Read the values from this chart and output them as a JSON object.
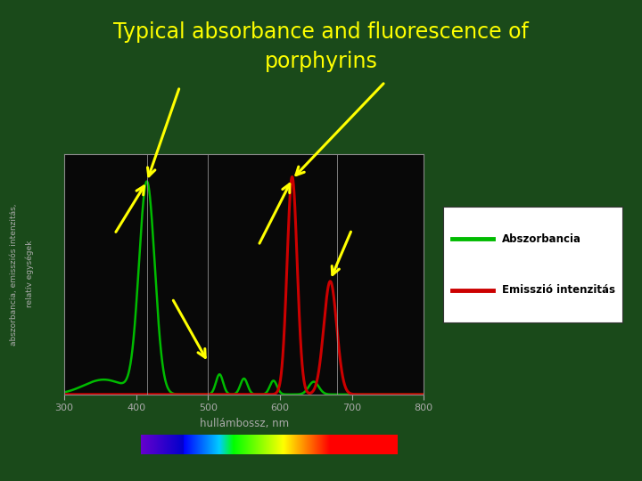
{
  "title_line1": "Typical absorbance and fluorescence of",
  "title_line2": "porphyrins",
  "title_color": "#ffff00",
  "bg_color": "#1a4a1a",
  "plot_bg_color": "#080808",
  "xlabel": "hullámbossz, nm",
  "ylabel_line1": "abszorbancia, emissziós intenzitás,",
  "ylabel_line2": "relatív egységek",
  "tick_color": "#aaaaaa",
  "xmin": 300,
  "xmax": 800,
  "legend_labels": [
    "Abszorbancia",
    "Emisszió intenzitás"
  ],
  "legend_colors": [
    "#00bb00",
    "#cc0000"
  ],
  "arrow_color": "#ffff00",
  "abs_color": "#00bb00",
  "fluo_color": "#cc0000"
}
